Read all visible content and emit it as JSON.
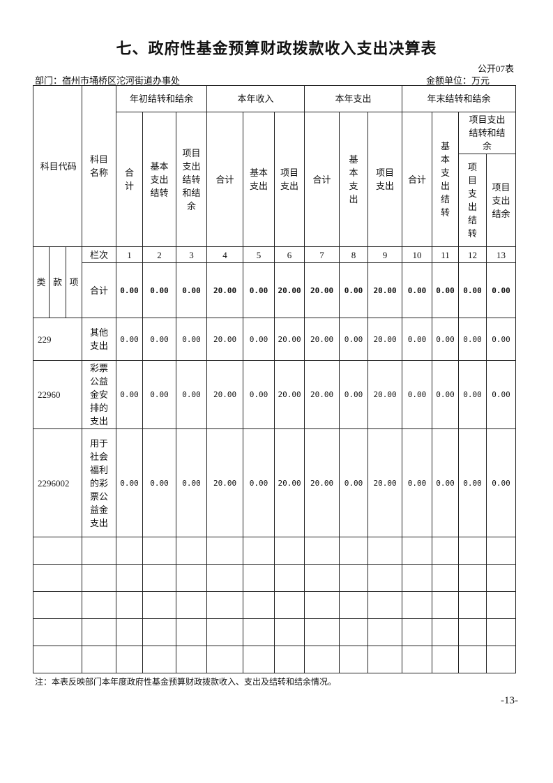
{
  "title": "七、政府性基金预算财政拨款收入支出决算表",
  "form_no": "公开07表",
  "department": "部门：宿州市埇桥区沱河街道办事处",
  "unit": "金额单位：万元",
  "header": {
    "code": "科目代码",
    "name": "科目名称",
    "groups": [
      "年初结转和结余",
      "本年收入",
      "本年支出",
      "年末结转和结余"
    ],
    "sub": {
      "g1": [
        "合计",
        "基本支出结转",
        "项目支出结转和结余"
      ],
      "g2": [
        "合计",
        "基本支出",
        "项目支出"
      ],
      "g3": [
        "合计",
        "基本支出",
        "项目支出"
      ],
      "g4": [
        "合计",
        "基本支出结转",
        "项目支出结转和结余",
        "项目支出结转",
        "项目支出结余"
      ]
    },
    "lei": "类",
    "kuan": "款",
    "xiang": "项",
    "col_index_label": "栏次",
    "col_index": [
      "1",
      "2",
      "3",
      "4",
      "5",
      "6",
      "7",
      "8",
      "9",
      "10",
      "11",
      "12",
      "13"
    ]
  },
  "rows": [
    {
      "code": "",
      "name": "合计",
      "values": [
        "0.00",
        "0.00",
        "0.00",
        "20.00",
        "0.00",
        "20.00",
        "20.00",
        "0.00",
        "20.00",
        "0.00",
        "0.00",
        "0.00",
        "0.00"
      ]
    },
    {
      "code": "229",
      "name": "其他支出",
      "values": [
        "0.00",
        "0.00",
        "0.00",
        "20.00",
        "0.00",
        "20.00",
        "20.00",
        "0.00",
        "20.00",
        "0.00",
        "0.00",
        "0.00",
        "0.00"
      ]
    },
    {
      "code": "22960",
      "name": "彩票公益金安排的支出",
      "values": [
        "0.00",
        "0.00",
        "0.00",
        "20.00",
        "0.00",
        "20.00",
        "20.00",
        "0.00",
        "20.00",
        "0.00",
        "0.00",
        "0.00",
        "0.00"
      ]
    },
    {
      "code": "2296002",
      "name": "用于社会福利的彩票公益金支出",
      "values": [
        "0.00",
        "0.00",
        "0.00",
        "20.00",
        "0.00",
        "20.00",
        "20.00",
        "0.00",
        "20.00",
        "0.00",
        "0.00",
        "0.00",
        "0.00"
      ]
    }
  ],
  "note": "注：本表反映部门本年度政府性基金预算财政拨款收入、支出及结转和结余情况。",
  "page_number": "-13-"
}
